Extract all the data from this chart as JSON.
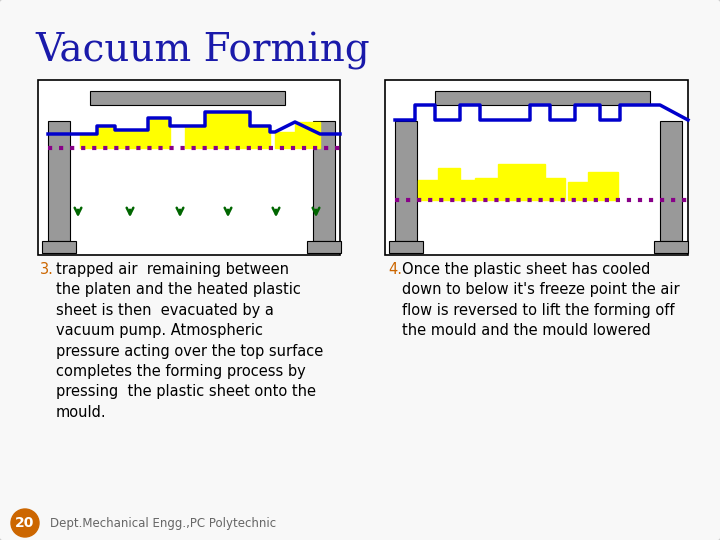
{
  "title": "Vacuum Forming",
  "title_color": "#1a1aaa",
  "title_fontsize": 28,
  "bg_color": "#f8f8f8",
  "panel_bg": "#ffffff",
  "panel_border": "#000000",
  "text3_number_color": "#cc6600",
  "text4_number_color": "#cc6600",
  "text3_body": "trapped air  remaining between\nthe platen and the heated plastic\nsheet is then  evacuated by a\nvacuum pump. Atmospheric\npressure acting over the top surface\ncompletes the forming process by\npressing  the plastic sheet onto the\nmould.",
  "text4_body": "Once the plastic sheet has cooled\ndown to below it's freeze point the air\nflow is reversed to lift the forming off\nthe mould and the mould lowered",
  "footer": "Dept.Mechanical Engg.,PC Polytechnic",
  "page_num": "20",
  "gray_color": "#999999",
  "yellow_fill": "#ffff00",
  "blue_line_color": "#0000cc",
  "purple_dot_color": "#880088",
  "arrow_color": "#006600",
  "black": "#000000",
  "white": "#ffffff",
  "orange_circle": "#cc6600",
  "footer_color": "#666666"
}
